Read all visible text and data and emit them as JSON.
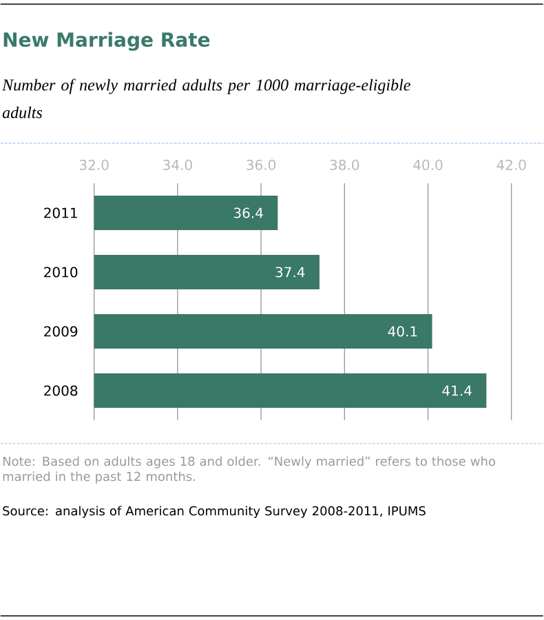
{
  "chart_data": {
    "type": "bar",
    "orientation": "horizontal",
    "title": "New Marriage Rate",
    "subtitle": "Number of newly married adults per 1000 marriage-eligible adults",
    "categories": [
      "2011",
      "2010",
      "2009",
      "2008"
    ],
    "values": [
      36.4,
      37.4,
      40.1,
      41.4
    ],
    "color": "#3a7868",
    "xlim": [
      32,
      42
    ],
    "xticks": [
      {
        "value": 32,
        "label": "32.0"
      },
      {
        "value": 34,
        "label": "34.0"
      },
      {
        "value": 36,
        "label": "36.0"
      },
      {
        "value": 38,
        "label": "38.0"
      },
      {
        "value": 40,
        "label": "40.0"
      },
      {
        "value": 42,
        "label": "42.0"
      }
    ],
    "grid": "x",
    "data_labels": true,
    "annotations": [
      "Note: Based on adults ages 18 and older. “Newly married” refers to those who married in the past 12 months.",
      "Source: analysis of American Community Survey 2008-2011, IPUMS"
    ]
  }
}
